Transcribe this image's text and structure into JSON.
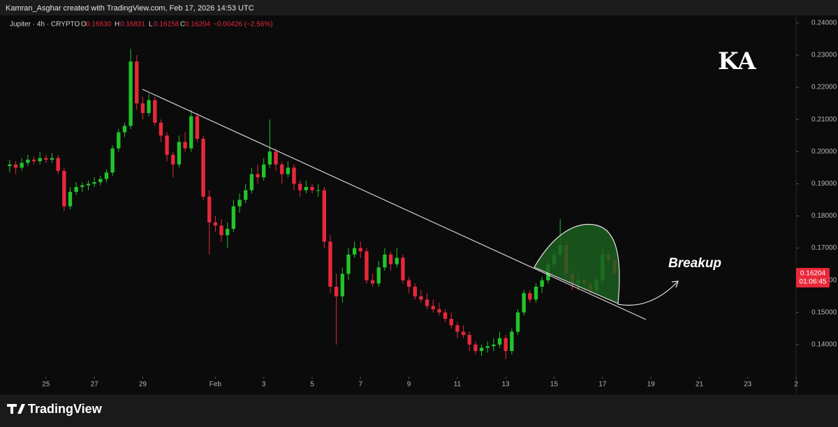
{
  "header": {
    "credit": "Kamran_Asghar created with TradingView.com, Feb 17, 2026 14:53 UTC"
  },
  "footer": {
    "brand": "TradingView"
  },
  "chart_data": {
    "type": "candlestick",
    "title": "Jupiter · 4h · CRYPTO",
    "legend": {
      "open_key": "O",
      "open": {
        "value": 0.1663,
        "label": "0.16630"
      },
      "high_key": "H",
      "high": 0.16831,
      "low_key": "L",
      "low": 0.16158,
      "close_key": "C",
      "close": 0.16204,
      "change": "−0.00426 (−2.56%)"
    },
    "annotation": "Breakup",
    "watermark": "KA",
    "countdown": "01:06:45",
    "up_color": "#22c32a",
    "down_color": "#e8283a",
    "x": [
      23.5,
      23.75,
      24,
      24.25,
      24.5,
      24.75,
      25,
      25.25,
      25.5,
      25.75,
      26,
      26.25,
      26.5,
      26.75,
      27,
      27.25,
      27.5,
      27.75,
      28,
      28.25,
      28.5,
      28.75,
      29,
      29.25,
      29.5,
      29.75,
      30,
      30.25,
      30.5,
      30.75,
      31,
      31.25,
      31.5,
      31.75,
      32,
      32.25,
      32.5,
      32.75,
      33,
      33.25,
      33.5,
      33.75,
      34,
      34.25,
      34.5,
      34.75,
      35,
      35.25,
      35.5,
      35.75,
      36,
      36.25,
      36.5,
      36.75,
      37,
      37.25,
      37.5,
      37.75,
      38,
      38.25,
      38.5,
      38.75,
      39,
      39.25,
      39.5,
      39.75,
      40,
      40.25,
      40.5,
      40.75,
      41,
      41.25,
      41.5,
      41.75,
      42,
      42.25,
      42.5,
      42.75,
      43,
      43.25,
      43.5,
      43.75,
      44,
      44.25,
      44.5,
      44.75,
      45,
      45.25,
      45.5,
      45.75,
      46,
      46.25,
      46.5,
      46.75,
      47,
      47.25,
      47.5,
      47.75,
      48,
      48.25,
      48.5
    ],
    "open": [
      0.1955,
      0.196,
      0.195,
      0.1965,
      0.1975,
      0.197,
      0.198,
      0.1975,
      0.198,
      0.194,
      0.183,
      0.1875,
      0.189,
      0.1895,
      0.19,
      0.1905,
      0.1915,
      0.1935,
      0.201,
      0.206,
      0.208,
      0.228,
      0.215,
      0.212,
      0.216,
      0.209,
      0.205,
      0.199,
      0.196,
      0.203,
      0.201,
      0.211,
      0.204,
      0.186,
      0.178,
      0.177,
      0.174,
      0.176,
      0.183,
      0.185,
      0.188,
      0.193,
      0.192,
      0.196,
      0.2,
      0.196,
      0.193,
      0.195,
      0.19,
      0.188,
      0.189,
      0.188,
      0.188,
      0.172,
      0.158,
      0.155,
      0.162,
      0.168,
      0.17,
      0.169,
      0.16,
      0.159,
      0.164,
      0.168,
      0.165,
      0.167,
      0.16,
      0.158,
      0.155,
      0.154,
      0.152,
      0.151,
      0.15,
      0.148,
      0.146,
      0.144,
      0.143,
      0.14,
      0.138,
      0.139,
      0.1395,
      0.14,
      0.142,
      0.138,
      0.144,
      0.15,
      0.156,
      0.154,
      0.158,
      0.16,
      0.165,
      0.168,
      0.171,
      0.162,
      0.159,
      0.16,
      0.159,
      0.157,
      0.16,
      0.168,
      0.1663
    ],
    "high": [
      0.1975,
      0.197,
      0.198,
      0.199,
      0.1985,
      0.2,
      0.199,
      0.1995,
      0.199,
      0.195,
      0.189,
      0.1905,
      0.1905,
      0.191,
      0.192,
      0.1925,
      0.1945,
      0.202,
      0.207,
      0.209,
      0.232,
      0.23,
      0.217,
      0.218,
      0.217,
      0.21,
      0.206,
      0.2,
      0.205,
      0.206,
      0.213,
      0.212,
      0.205,
      0.188,
      0.18,
      0.179,
      0.178,
      0.185,
      0.187,
      0.19,
      0.195,
      0.196,
      0.198,
      0.21,
      0.201,
      0.197,
      0.197,
      0.196,
      0.191,
      0.191,
      0.19,
      0.19,
      0.189,
      0.174,
      0.162,
      0.164,
      0.17,
      0.172,
      0.172,
      0.17,
      0.162,
      0.166,
      0.17,
      0.169,
      0.17,
      0.168,
      0.161,
      0.159,
      0.157,
      0.156,
      0.154,
      0.153,
      0.151,
      0.15,
      0.147,
      0.146,
      0.144,
      0.141,
      0.14,
      0.141,
      0.142,
      0.144,
      0.143,
      0.145,
      0.151,
      0.157,
      0.157,
      0.159,
      0.161,
      0.166,
      0.169,
      0.179,
      0.172,
      0.164,
      0.162,
      0.161,
      0.16,
      0.161,
      0.17,
      0.169,
      0.16831
    ],
    "low": [
      0.1935,
      0.193,
      0.194,
      0.1955,
      0.196,
      0.196,
      0.1965,
      0.1965,
      0.193,
      0.1815,
      0.182,
      0.1865,
      0.1875,
      0.188,
      0.189,
      0.1895,
      0.1905,
      0.1925,
      0.2,
      0.2045,
      0.207,
      0.213,
      0.21,
      0.211,
      0.208,
      0.203,
      0.197,
      0.192,
      0.195,
      0.2,
      0.2,
      0.203,
      0.185,
      0.168,
      0.175,
      0.172,
      0.17,
      0.175,
      0.181,
      0.184,
      0.187,
      0.19,
      0.191,
      0.195,
      0.194,
      0.19,
      0.192,
      0.188,
      0.186,
      0.187,
      0.187,
      0.186,
      0.17,
      0.156,
      0.14,
      0.153,
      0.16,
      0.167,
      0.167,
      0.159,
      0.158,
      0.158,
      0.163,
      0.163,
      0.164,
      0.159,
      0.156,
      0.154,
      0.153,
      0.151,
      0.15,
      0.149,
      0.147,
      0.145,
      0.142,
      0.142,
      0.138,
      0.137,
      0.1365,
      0.1375,
      0.138,
      0.139,
      0.1355,
      0.137,
      0.143,
      0.149,
      0.153,
      0.153,
      0.156,
      0.159,
      0.164,
      0.167,
      0.16,
      0.157,
      0.157,
      0.157,
      0.156,
      0.156,
      0.159,
      0.165,
      0.16158
    ],
    "close": [
      0.196,
      0.195,
      0.1965,
      0.1975,
      0.197,
      0.198,
      0.1975,
      0.198,
      0.194,
      0.183,
      0.1875,
      0.189,
      0.1895,
      0.19,
      0.1905,
      0.1915,
      0.1935,
      0.201,
      0.206,
      0.208,
      0.228,
      0.215,
      0.212,
      0.216,
      0.209,
      0.205,
      0.199,
      0.196,
      0.203,
      0.201,
      0.211,
      0.204,
      0.186,
      0.178,
      0.177,
      0.174,
      0.176,
      0.183,
      0.185,
      0.188,
      0.193,
      0.192,
      0.196,
      0.2,
      0.196,
      0.193,
      0.195,
      0.19,
      0.188,
      0.189,
      0.188,
      0.188,
      0.172,
      0.158,
      0.155,
      0.162,
      0.168,
      0.17,
      0.169,
      0.16,
      0.159,
      0.164,
      0.168,
      0.165,
      0.167,
      0.16,
      0.158,
      0.155,
      0.154,
      0.152,
      0.151,
      0.15,
      0.148,
      0.146,
      0.144,
      0.143,
      0.14,
      0.138,
      0.139,
      0.1395,
      0.14,
      0.142,
      0.138,
      0.144,
      0.15,
      0.156,
      0.154,
      0.158,
      0.16,
      0.165,
      0.168,
      0.171,
      0.162,
      0.159,
      0.16,
      0.159,
      0.157,
      0.16,
      0.168,
      0.1663,
      0.16204
    ],
    "xlim": [
      23.1,
      56.0
    ],
    "xticks": [
      {
        "value": 25,
        "label": "25"
      },
      {
        "value": 27,
        "label": "27"
      },
      {
        "value": 29,
        "label": "29"
      },
      {
        "value": 32,
        "label": "Feb"
      },
      {
        "value": 34,
        "label": "3"
      },
      {
        "value": 36,
        "label": "5"
      },
      {
        "value": 38,
        "label": "7"
      },
      {
        "value": 40,
        "label": "9"
      },
      {
        "value": 42,
        "label": "11"
      },
      {
        "value": 44,
        "label": "13"
      },
      {
        "value": 46,
        "label": "15"
      },
      {
        "value": 48,
        "label": "17"
      },
      {
        "value": 50,
        "label": "19"
      },
      {
        "value": 52,
        "label": "21"
      },
      {
        "value": 54,
        "label": "23"
      },
      {
        "value": 56,
        "label": "2"
      }
    ],
    "ylim": [
      0.13,
      0.2428
    ],
    "yticks": [
      {
        "value": 0.14,
        "label": "0.14000"
      },
      {
        "value": 0.15,
        "label": "0.15000"
      },
      {
        "value": 0.16,
        "label": "0.16000"
      },
      {
        "value": 0.17,
        "label": "0.17000"
      },
      {
        "value": 0.18,
        "label": "0.18000"
      },
      {
        "value": 0.19,
        "label": "0.19000"
      },
      {
        "value": 0.2,
        "label": "0.20000"
      },
      {
        "value": 0.21,
        "label": "0.21000"
      },
      {
        "value": 0.22,
        "label": "0.22000"
      },
      {
        "value": 0.23,
        "label": "0.23000"
      },
      {
        "value": 0.24,
        "label": "0.24000"
      }
    ]
  }
}
